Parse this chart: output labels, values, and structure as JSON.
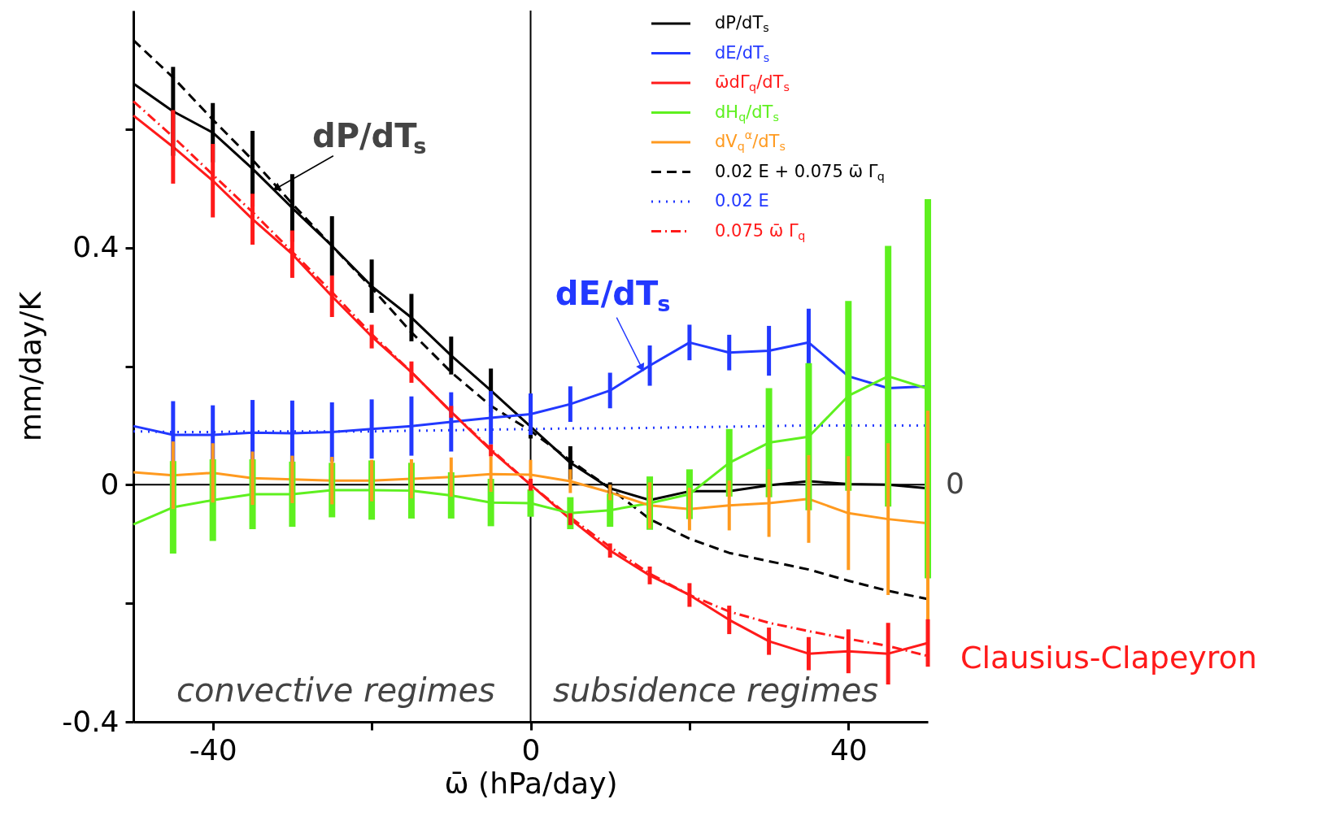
{
  "chart_data": {
    "type": "line",
    "xlabel": "ω̄ (hPa/day)",
    "ylabel": "mm/day/K",
    "x": [
      -50,
      -45,
      -40,
      -35,
      -30,
      -25,
      -20,
      -15,
      -10,
      -5,
      0,
      5,
      10,
      15,
      20,
      25,
      30,
      35,
      40,
      45,
      50
    ],
    "xlim": [
      -50,
      50
    ],
    "xticks": [
      -40,
      {
        "value": -20,
        "label": null
      },
      0,
      {
        "value": 20,
        "label": null
      },
      40
    ],
    "ylim": [
      -0.4,
      0.8
    ],
    "yticks": [
      -0.4,
      {
        "value": -0.2,
        "label": null
      },
      0,
      {
        "value": 0.2,
        "label": null
      },
      0.4,
      {
        "value": 0.6,
        "label": null
      }
    ],
    "grid": false,
    "legend": "top right",
    "marker": "none",
    "series": [
      {
        "name": "dP/dT$_{s}$",
        "color": "#000000",
        "line_style": "solid",
        "values": [
          0.677,
          0.63,
          0.594,
          0.533,
          0.467,
          0.403,
          0.335,
          0.282,
          0.218,
          0.159,
          0.098,
          0.037,
          -0.006,
          -0.026,
          -0.011,
          -0.011,
          -0.001,
          0.006,
          0.001,
          0,
          -0.006
        ],
        "errors": [
          null,
          0.075,
          0.05,
          0.064,
          0.057,
          0.05,
          0.045,
          0.04,
          0.032,
          0.037,
          0.02,
          0.028,
          0.01,
          null,
          null,
          null,
          null,
          null,
          null,
          null,
          null
        ]
      },
      {
        "name": "dE/dT$_{s}$",
        "color": "#2238ff",
        "line_style": "solid",
        "values": [
          0.099,
          0.084,
          0.084,
          0.088,
          0.087,
          0.089,
          0.094,
          0.099,
          0.106,
          0.113,
          0.119,
          0.136,
          0.159,
          0.201,
          0.24,
          0.223,
          0.226,
          0.24,
          0.183,
          0.163,
          0.166
        ],
        "errors": [
          null,
          0.057,
          0.05,
          0.055,
          0.055,
          0.05,
          0.05,
          0.05,
          0.05,
          0.045,
          0.035,
          0.03,
          0.03,
          0.034,
          0.03,
          0.03,
          0.042,
          0.057,
          null,
          null,
          null
        ]
      },
      {
        "name": "ω̄dΓ$_{q}$/dT$_{s}$",
        "color": "#ff1a1a",
        "line_style": "solid",
        "values": [
          0.623,
          0.57,
          0.513,
          0.448,
          0.389,
          0.318,
          0.25,
          0.19,
          0.123,
          0.058,
          0,
          -0.058,
          -0.111,
          -0.153,
          -0.186,
          -0.228,
          -0.264,
          -0.285,
          -0.281,
          -0.285,
          -0.267
        ],
        "errors": [
          null,
          0.062,
          0.062,
          0.043,
          0.04,
          0.035,
          0.02,
          0.018,
          0.01,
          0.01,
          0.01,
          0.01,
          0.012,
          0.015,
          0.02,
          0.024,
          0.023,
          0.028,
          0.037,
          0.052,
          0.04
        ]
      },
      {
        "name": "dH$_{q}$/dT$_{s}$",
        "color": "#5ef01f",
        "line_style": "solid",
        "values": [
          -0.067,
          -0.038,
          -0.026,
          -0.016,
          -0.016,
          -0.009,
          -0.009,
          -0.01,
          -0.018,
          -0.03,
          -0.031,
          -0.048,
          -0.043,
          -0.031,
          -0.016,
          0.037,
          0.071,
          0.081,
          0.15,
          0.183,
          0.162
        ],
        "errors": [
          null,
          0.078,
          0.069,
          0.059,
          0.055,
          0.046,
          0.05,
          0.047,
          0.039,
          0.04,
          0.023,
          0.027,
          0.028,
          0.045,
          0.042,
          0.057,
          0.092,
          0.124,
          0.16,
          0.22,
          0.32
        ]
      },
      {
        "name": "dV$_{q}$$^{α}$/dT$_{s}$",
        "color": "#ff9a1f",
        "line_style": "solid",
        "values": [
          0.021,
          0.016,
          0.02,
          0.011,
          0.009,
          0.007,
          0.007,
          0.01,
          0.013,
          0.018,
          0.017,
          0.006,
          -0.013,
          -0.035,
          -0.041,
          -0.035,
          -0.031,
          -0.024,
          -0.048,
          -0.058,
          -0.065
        ],
        "errors": [
          null,
          0.057,
          0.05,
          0.045,
          0.04,
          0.04,
          0.035,
          0.033,
          0.033,
          0.03,
          0.025,
          0.02,
          0.013,
          0.039,
          0.036,
          0.042,
          0.057,
          0.074,
          0.096,
          0.128,
          0.19
        ]
      },
      {
        "name": "0.02 E + 0.075 ω̄ Γ$_{q}$",
        "color": "#000000",
        "line_style": "dashed",
        "values": [
          0.75,
          0.687,
          0.616,
          0.548,
          0.474,
          0.403,
          0.332,
          0.257,
          0.19,
          0.133,
          0.091,
          0.041,
          -0.006,
          -0.058,
          -0.091,
          -0.115,
          -0.129,
          -0.143,
          -0.162,
          -0.179,
          -0.193
        ]
      },
      {
        "name": "0.02 E",
        "color": "#2238ff",
        "line_style": "dotted",
        "values": [
          0.09,
          0.089,
          0.089,
          0.09,
          0.09,
          0.09,
          0.09,
          0.091,
          0.092,
          0.093,
          0.094,
          0.095,
          0.095,
          0.096,
          0.097,
          0.098,
          0.099,
          0.1,
          0.1,
          0.1,
          0.1
        ]
      },
      {
        "name": "0.075 ω̄ Γ$_{q}$",
        "color": "#ff1a1a",
        "line_style": "dashdot",
        "values": [
          0.647,
          0.587,
          0.523,
          0.46,
          0.393,
          0.325,
          0.254,
          0.19,
          0.123,
          0.06,
          0,
          -0.055,
          -0.105,
          -0.15,
          -0.186,
          -0.214,
          -0.233,
          -0.247,
          -0.26,
          -0.272,
          -0.289
        ]
      }
    ],
    "ref_lines": [
      {
        "axis": "y",
        "value": 0,
        "label": "0",
        "color": "#000000"
      },
      {
        "axis": "x",
        "value": 0,
        "color": "#000000"
      }
    ],
    "annotations": [
      {
        "text": "dP/dT$_{s}$",
        "x": -32,
        "y": 0.5
      },
      {
        "text": "dE/dT$_{s}$",
        "x": 14,
        "y": 0.197
      },
      "convective regimes",
      "subsidence regimes",
      {
        "text": "Clausius-Clapeyron",
        "x": 50,
        "y": -0.289
      }
    ]
  }
}
